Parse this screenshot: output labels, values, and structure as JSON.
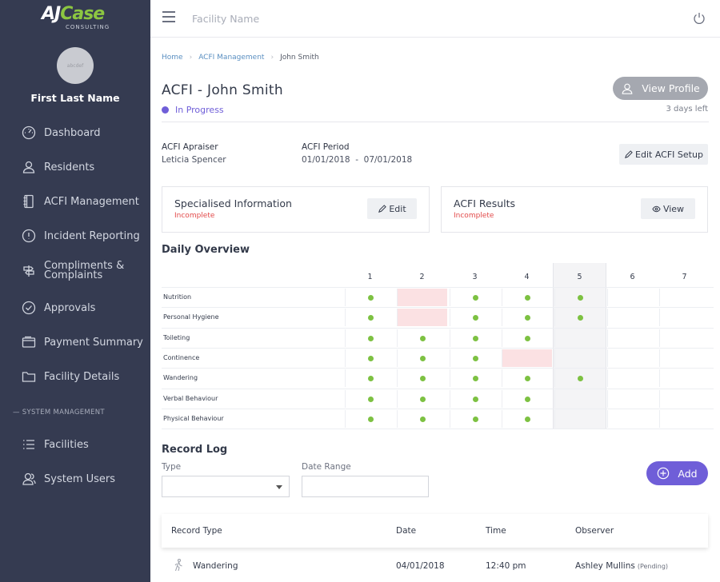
{
  "brand": {
    "logo_main_a": "AJ",
    "logo_main_b": "Case",
    "logo_sub": "CONSULTING"
  },
  "user": {
    "name": "First Last Name",
    "avatar_text": "abcdef"
  },
  "sidebar": {
    "items": [
      {
        "label": "Dashboard",
        "icon": "dashboard-gauge-icon"
      },
      {
        "label": "Residents",
        "icon": "user-icon"
      },
      {
        "label": "ACFI Management",
        "icon": "notebook-icon"
      },
      {
        "label": "Incident Reporting",
        "icon": "alert-circle-icon"
      },
      {
        "label_line1": "Compliments &",
        "label_line2": "Complaints",
        "icon": "signpost-icon"
      },
      {
        "label": "Approvals",
        "icon": "check-circle-icon"
      },
      {
        "label": "Payment Summary",
        "icon": "wallet-icon"
      },
      {
        "label": "Facility Details",
        "icon": "folder-icon"
      }
    ],
    "section_label": "— SYSTEM MANAGEMENT",
    "system_items": [
      {
        "label": "Facilities",
        "icon": "list-icon"
      },
      {
        "label": "System Users",
        "icon": "users-icon"
      }
    ]
  },
  "topbar": {
    "facility_placeholder": "Facility Name"
  },
  "breadcrumb": [
    "Home",
    "ACFI Management",
    "John Smith"
  ],
  "page": {
    "title": "ACFI - John Smith",
    "status": "In Progress",
    "view_profile": "View Profile",
    "days_left": "3 days left"
  },
  "acfi": {
    "appraiser_label": "ACFI Apraiser",
    "appraiser_value": "Leticia Spencer",
    "period_label": "ACFI Period",
    "period_value": "01/01/2018  -  07/01/2018",
    "edit_setup": "Edit ACFI Setup"
  },
  "cards": [
    {
      "title": "Specialised Information",
      "status": "Incomplete",
      "action": "Edit"
    },
    {
      "title": "ACFI Results",
      "status": "Incomplete",
      "action": "View"
    }
  ],
  "daily_overview": {
    "title": "Daily Overview",
    "days": [
      "1",
      "2",
      "3",
      "4",
      "5",
      "6",
      "7"
    ],
    "highlight_day": 5,
    "rows": [
      {
        "label": "Nutrition",
        "cells": [
          "ok",
          "fail",
          "ok",
          "ok",
          "ok",
          "",
          ""
        ]
      },
      {
        "label": "Personal Hygiene",
        "cells": [
          "ok",
          "fail",
          "ok",
          "ok",
          "ok",
          "",
          ""
        ]
      },
      {
        "label": "Toileting",
        "cells": [
          "ok",
          "ok",
          "ok",
          "ok",
          "",
          "",
          ""
        ]
      },
      {
        "label": "Continence",
        "cells": [
          "ok",
          "ok",
          "ok",
          "fail",
          "",
          "",
          ""
        ]
      },
      {
        "label": "Wandering",
        "cells": [
          "ok",
          "ok",
          "ok",
          "ok",
          "ok",
          "",
          ""
        ]
      },
      {
        "label": "Verbal Behaviour",
        "cells": [
          "ok",
          "ok",
          "ok",
          "ok",
          "",
          "",
          ""
        ]
      },
      {
        "label": "Physical Behaviour",
        "cells": [
          "ok",
          "ok",
          "ok",
          "ok",
          "",
          "",
          ""
        ]
      }
    ]
  },
  "record_log": {
    "title": "Record Log",
    "type_label": "Type",
    "type_value": "",
    "date_label": "Date Range",
    "date_value": "",
    "add": "Add",
    "columns": [
      "Record Type",
      "Date",
      "Time",
      "Observer"
    ],
    "rows": [
      {
        "type": "Wandering",
        "icon": "walking-person-icon",
        "date": "04/01/2018",
        "time": "12:40 pm",
        "observer": "Ashley Mullins",
        "observer_status": "(Pending)"
      }
    ]
  },
  "colors": {
    "sidebar": "#353b51",
    "accent": "#6f5ed8",
    "ok": "#7dc142",
    "fail": "#fbe1e3",
    "incomplete": "#e24a4a"
  }
}
